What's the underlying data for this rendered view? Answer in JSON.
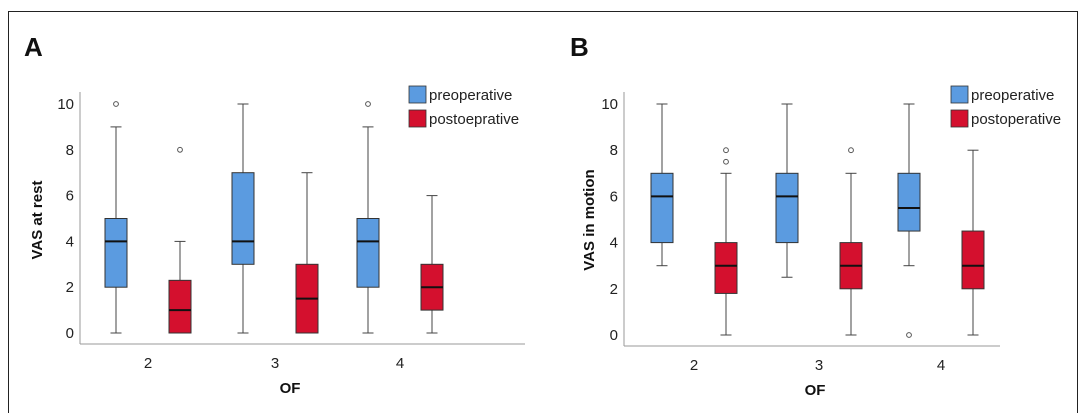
{
  "colors": {
    "pre": "#5b9be0",
    "post": "#d4102e",
    "axis": "#9a9a9a",
    "whisker": "#444444",
    "median": "#111111"
  },
  "chart_data": [
    {
      "panel": "A",
      "type": "boxplot",
      "xlabel": "OF",
      "ylabel": "VAS at rest",
      "ylim": [
        0,
        10
      ],
      "yticks": [
        0,
        2,
        4,
        6,
        8,
        10
      ],
      "categories": [
        "2",
        "3",
        "4"
      ],
      "series": [
        {
          "name": "preoperative",
          "color": "#5b9be0",
          "boxes": [
            {
              "min": 0,
              "q1": 2,
              "median": 4,
              "q3": 5,
              "max": 9,
              "outliers": [
                10
              ]
            },
            {
              "min": 0,
              "q1": 3,
              "median": 4,
              "q3": 7,
              "max": 10,
              "outliers": []
            },
            {
              "min": 0,
              "q1": 2,
              "median": 4,
              "q3": 5,
              "max": 9,
              "outliers": [
                10
              ]
            }
          ]
        },
        {
          "name": "postoeprative",
          "color": "#d4102e",
          "boxes": [
            {
              "min": 0,
              "q1": 0,
              "median": 1,
              "q3": 2.3,
              "max": 4,
              "outliers": [
                8
              ]
            },
            {
              "min": 0,
              "q1": 0,
              "median": 1.5,
              "q3": 3,
              "max": 7,
              "outliers": []
            },
            {
              "min": 0,
              "q1": 1,
              "median": 2,
              "q3": 3,
              "max": 6,
              "outliers": []
            }
          ]
        }
      ],
      "legend": "top-right"
    },
    {
      "panel": "B",
      "type": "boxplot",
      "xlabel": "OF",
      "ylabel": "VAS in motion",
      "ylim": [
        0,
        10
      ],
      "yticks": [
        0,
        2,
        4,
        6,
        8,
        10
      ],
      "categories": [
        "2",
        "3",
        "4"
      ],
      "series": [
        {
          "name": "preoperative",
          "color": "#5b9be0",
          "boxes": [
            {
              "min": 3,
              "q1": 4,
              "median": 6,
              "q3": 7,
              "max": 10,
              "outliers": []
            },
            {
              "min": 2.5,
              "q1": 4,
              "median": 6,
              "q3": 7,
              "max": 10,
              "outliers": []
            },
            {
              "min": 3,
              "q1": 4.5,
              "median": 5.5,
              "q3": 7,
              "max": 10,
              "outliers": [
                0
              ]
            }
          ]
        },
        {
          "name": "postoperative",
          "color": "#d4102e",
          "boxes": [
            {
              "min": 0,
              "q1": 1.8,
              "median": 3,
              "q3": 4,
              "max": 7,
              "outliers": [
                7.5,
                8
              ]
            },
            {
              "min": 0,
              "q1": 2,
              "median": 3,
              "q3": 4,
              "max": 7,
              "outliers": [
                8
              ]
            },
            {
              "min": 0,
              "q1": 2,
              "median": 3,
              "q3": 4.5,
              "max": 8,
              "outliers": []
            }
          ]
        }
      ],
      "legend": "top-right"
    }
  ]
}
